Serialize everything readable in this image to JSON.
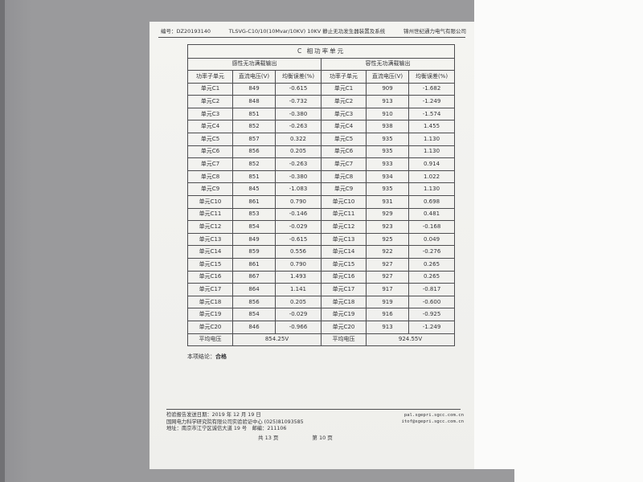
{
  "page": {
    "header": {
      "doc_number": "编号：DZ20193140",
      "title": "TLSVG-C10/10(10Mvar/10KV) 10KV 静止无功发生器装置及系统",
      "company": "锦州世纪通力电气有限公司"
    },
    "table": {
      "title": "C 相功率单元",
      "sections": {
        "left": "感性无功满载输出",
        "right": "容性无功满载输出"
      },
      "columns": [
        "功率子单元",
        "直流电压(V)",
        "均衡误差(%)"
      ],
      "rows": [
        {
          "unit": "单元C1",
          "lv": "849",
          "le": "-0.615",
          "rv": "909",
          "re": "-1.682"
        },
        {
          "unit": "单元C2",
          "lv": "848",
          "le": "-0.732",
          "rv": "913",
          "re": "-1.249"
        },
        {
          "unit": "单元C3",
          "lv": "851",
          "le": "-0.380",
          "rv": "910",
          "re": "-1.574"
        },
        {
          "unit": "单元C4",
          "lv": "852",
          "le": "-0.263",
          "rv": "938",
          "re": "1.455"
        },
        {
          "unit": "单元C5",
          "lv": "857",
          "le": "0.322",
          "rv": "935",
          "re": "1.130"
        },
        {
          "unit": "单元C6",
          "lv": "856",
          "le": "0.205",
          "rv": "935",
          "re": "1.130"
        },
        {
          "unit": "单元C7",
          "lv": "852",
          "le": "-0.263",
          "rv": "933",
          "re": "0.914"
        },
        {
          "unit": "单元C8",
          "lv": "851",
          "le": "-0.380",
          "rv": "934",
          "re": "1.022"
        },
        {
          "unit": "单元C9",
          "lv": "845",
          "le": "-1.083",
          "rv": "935",
          "re": "1.130"
        },
        {
          "unit": "单元C10",
          "lv": "861",
          "le": "0.790",
          "rv": "931",
          "re": "0.698"
        },
        {
          "unit": "单元C11",
          "lv": "853",
          "le": "-0.146",
          "rv": "929",
          "re": "0.481"
        },
        {
          "unit": "单元C12",
          "lv": "854",
          "le": "-0.029",
          "rv": "923",
          "re": "-0.168"
        },
        {
          "unit": "单元C13",
          "lv": "849",
          "le": "-0.615",
          "rv": "925",
          "re": "0.049"
        },
        {
          "unit": "单元C14",
          "lv": "859",
          "le": "0.556",
          "rv": "922",
          "re": "-0.276"
        },
        {
          "unit": "单元C15",
          "lv": "861",
          "le": "0.790",
          "rv": "927",
          "re": "0.265"
        },
        {
          "unit": "单元C16",
          "lv": "867",
          "le": "1.493",
          "rv": "927",
          "re": "0.265"
        },
        {
          "unit": "单元C17",
          "lv": "864",
          "le": "1.141",
          "rv": "917",
          "re": "-0.817"
        },
        {
          "unit": "单元C18",
          "lv": "856",
          "le": "0.205",
          "rv": "919",
          "re": "-0.600"
        },
        {
          "unit": "单元C19",
          "lv": "854",
          "le": "-0.029",
          "rv": "916",
          "re": "-0.925"
        },
        {
          "unit": "单元C20",
          "lv": "846",
          "le": "-0.966",
          "rv": "913",
          "re": "-1.249"
        }
      ],
      "average": {
        "label": "平均电压",
        "left": "854.25V",
        "right": "924.55V"
      }
    },
    "conclusion": {
      "label": "本项结论：",
      "value": "合格"
    },
    "footer": {
      "report_date": "检验报告发送日期：2019 年 12 月 19 日",
      "org": "国网电力科学研究院有限公司实验验证中心 (025)81093585",
      "address": "地址：南京市江宁区诚信大道 19 号　邮编：211106",
      "website": "pal.sgepri.sgcc.com.cn",
      "email": "itof@sgepri.sgcc.com.cn",
      "pages_total": "共 13 页",
      "page_current": "第 10 页"
    }
  }
}
